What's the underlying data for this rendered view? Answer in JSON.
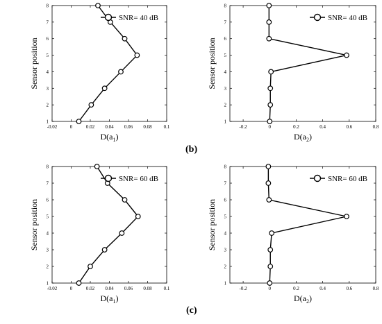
{
  "panel_labels": [
    "(b)",
    "(c)"
  ],
  "chart_data": [
    {
      "type": "line",
      "xlabel": "D(a1)",
      "xlabel_main": "D(a",
      "xlabel_sub": "1",
      "xlabel_close": ")",
      "ylabel": "Sensor position",
      "xlim": [
        -0.02,
        0.1
      ],
      "ylim": [
        1,
        8
      ],
      "xticks": [
        -0.02,
        0,
        0.02,
        0.04,
        0.06,
        0.08,
        0.1
      ],
      "xtick_labels": [
        "-0.02",
        "0",
        "0.02",
        "0.04",
        "0.06",
        "0.08",
        "0.1"
      ],
      "yticks": [
        1,
        2,
        3,
        4,
        5,
        6,
        7,
        8
      ],
      "ytick_labels": [
        "1",
        "2",
        "3",
        "4",
        "5",
        "6",
        "7",
        "8"
      ],
      "grid": false,
      "legend_position": "top-right",
      "series": [
        {
          "name": "SNR= 40 dB",
          "color": "#000000",
          "marker": "circle",
          "x": [
            0.008,
            0.021,
            0.035,
            0.052,
            0.069,
            0.056,
            0.041,
            0.028
          ],
          "y": [
            1,
            2,
            3,
            4,
            5,
            6,
            7,
            8
          ]
        }
      ]
    },
    {
      "type": "line",
      "xlabel": "D(a2)",
      "xlabel_main": "D(a",
      "xlabel_sub": "2",
      "xlabel_close": ")",
      "ylabel": "Sensor position",
      "xlim": [
        -0.3,
        0.8
      ],
      "ylim": [
        1,
        8
      ],
      "xticks": [
        -0.2,
        0,
        0.2,
        0.4,
        0.6,
        0.8
      ],
      "xtick_labels": [
        "-0.2",
        "0",
        "0.2",
        "0.4",
        "0.6",
        "0.8"
      ],
      "yticks": [
        1,
        2,
        3,
        4,
        5,
        6,
        7,
        8
      ],
      "ytick_labels": [
        "1",
        "2",
        "3",
        "4",
        "5",
        "6",
        "7",
        "8"
      ],
      "grid": false,
      "legend_position": "top-right",
      "series": [
        {
          "name": "SNR= 40 dB",
          "color": "#000000",
          "marker": "circle",
          "x": [
            0.0,
            0.005,
            0.005,
            0.01,
            0.58,
            -0.005,
            -0.005,
            -0.005
          ],
          "y": [
            1,
            2,
            3,
            4,
            5,
            6,
            7,
            8
          ]
        }
      ]
    },
    {
      "type": "line",
      "xlabel": "D(a1)",
      "xlabel_main": "D(a",
      "xlabel_sub": "1",
      "xlabel_close": ")",
      "ylabel": "Sensor position",
      "xlim": [
        -0.02,
        0.1
      ],
      "ylim": [
        1,
        8
      ],
      "xticks": [
        -0.02,
        0,
        0.02,
        0.04,
        0.06,
        0.08,
        0.1
      ],
      "xtick_labels": [
        "-0.02",
        "0",
        "0.02",
        "0.04",
        "0.06",
        "0.08",
        "0.1"
      ],
      "yticks": [
        1,
        2,
        3,
        4,
        5,
        6,
        7,
        8
      ],
      "ytick_labels": [
        "1",
        "2",
        "3",
        "4",
        "5",
        "6",
        "7",
        "8"
      ],
      "grid": false,
      "legend_position": "top-right",
      "series": [
        {
          "name": "SNR= 60 dB",
          "color": "#000000",
          "marker": "circle",
          "x": [
            0.008,
            0.02,
            0.035,
            0.053,
            0.07,
            0.056,
            0.038,
            0.027
          ],
          "y": [
            1,
            2,
            3,
            4,
            5,
            6,
            7,
            8
          ]
        }
      ]
    },
    {
      "type": "line",
      "xlabel": "D(a2)",
      "xlabel_main": "D(a",
      "xlabel_sub": "2",
      "xlabel_close": ")",
      "ylabel": "Sensor position",
      "xlim": [
        -0.3,
        0.8
      ],
      "ylim": [
        1,
        8
      ],
      "xticks": [
        -0.2,
        0,
        0.2,
        0.4,
        0.6,
        0.8
      ],
      "xtick_labels": [
        "-0.2",
        "0",
        "0.2",
        "0.4",
        "0.6",
        "0.8"
      ],
      "yticks": [
        1,
        2,
        3,
        4,
        5,
        6,
        7,
        8
      ],
      "ytick_labels": [
        "1",
        "2",
        "3",
        "4",
        "5",
        "6",
        "7",
        "8"
      ],
      "grid": false,
      "legend_position": "top-right",
      "series": [
        {
          "name": "SNR= 60 dB",
          "color": "#000000",
          "marker": "circle",
          "x": [
            0.0,
            0.005,
            0.005,
            0.015,
            0.58,
            -0.005,
            -0.01,
            -0.01
          ],
          "y": [
            1,
            2,
            3,
            4,
            5,
            6,
            7,
            8
          ]
        }
      ]
    }
  ]
}
